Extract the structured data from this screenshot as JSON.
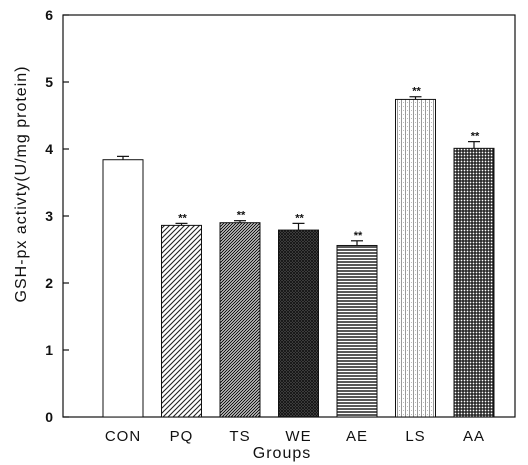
{
  "chart_data": {
    "type": "bar",
    "title": "",
    "xlabel": "Groups",
    "ylabel": "GSH-px activty(U/mg protein)",
    "ylim": [
      0,
      6
    ],
    "yticks": [
      "0",
      "1",
      "2",
      "3",
      "4",
      "5",
      "6"
    ],
    "grid": false,
    "categories": [
      "CON",
      "PQ",
      "TS",
      "WE",
      "AE",
      "LS",
      "AA"
    ],
    "values": [
      3.84,
      2.86,
      2.9,
      2.79,
      2.56,
      4.74,
      4.01
    ],
    "errors": [
      0.05,
      0.03,
      0.03,
      0.1,
      0.07,
      0.04,
      0.1
    ],
    "annotations": [
      "",
      "**",
      "**",
      "**",
      "**",
      "**",
      "**"
    ],
    "patterns": [
      "white",
      "sparse-diagonal",
      "dense-diagonal",
      "cross-hatch",
      "horizontal-lines",
      "dots",
      "grid"
    ]
  }
}
